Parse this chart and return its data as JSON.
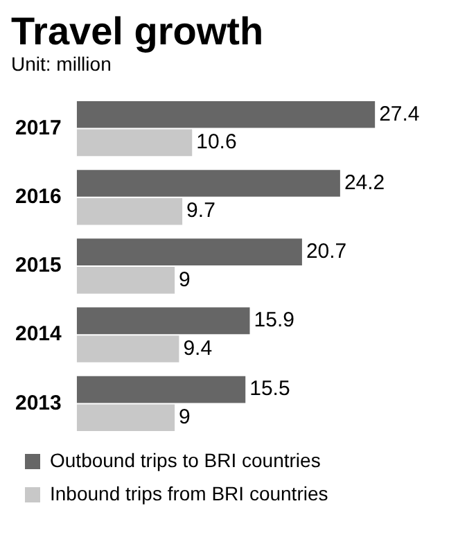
{
  "chart_data": {
    "type": "bar",
    "orientation": "horizontal",
    "title": "Travel growth",
    "subtitle": "Unit: million",
    "categories": [
      "2017",
      "2016",
      "2015",
      "2014",
      "2013"
    ],
    "series": [
      {
        "name": "Outbound trips to BRI countries",
        "color": "#666666",
        "values": [
          27.4,
          24.2,
          20.7,
          15.9,
          15.5
        ]
      },
      {
        "name": "Inbound trips from BRI countries",
        "color": "#c8c8c8",
        "values": [
          10.6,
          9.7,
          9,
          9.4,
          9
        ]
      }
    ],
    "data_labels": true,
    "legend": "bottom",
    "grid": false
  }
}
